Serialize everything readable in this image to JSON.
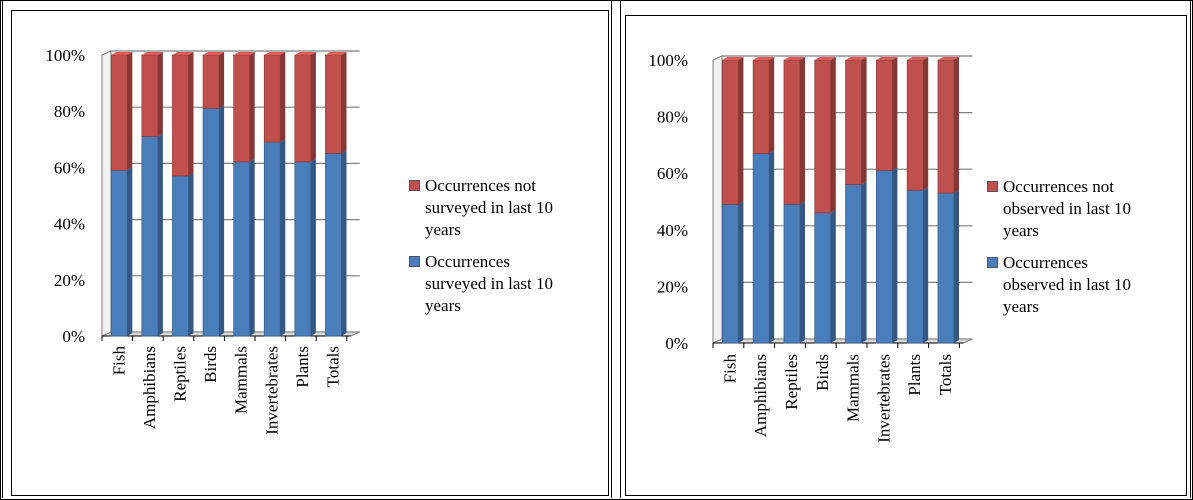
{
  "colors": {
    "surveyed_blue": "#4a7ebb",
    "not_surveyed_red": "#c0504d",
    "grid": "#7f7f7f",
    "floor": "#d9d9d9"
  },
  "chart_data": [
    {
      "type": "bar",
      "stacked": true,
      "percent": true,
      "categories": [
        "Fish",
        "Amphibians",
        "Reptiles",
        "Birds",
        "Mammals",
        "Invertebrates",
        "Plants",
        "Totals"
      ],
      "yticks": [
        "0%",
        "20%",
        "40%",
        "60%",
        "80%",
        "100%"
      ],
      "ylim": [
        0,
        100
      ],
      "grid": true,
      "legend_position": "right",
      "series": [
        {
          "name": "Occurrences surveyed in last 10 years",
          "color": "#4a7ebb",
          "values": [
            59,
            71,
            57,
            81,
            62,
            69,
            62,
            65
          ]
        },
        {
          "name": "Occurrences not surveyed in last 10 years",
          "color": "#c0504d",
          "values": [
            41,
            29,
            43,
            19,
            38,
            31,
            38,
            35
          ]
        }
      ],
      "legend": {
        "top_lines": [
          "Occurrences not",
          "surveyed in last 10",
          "years"
        ],
        "bottom_lines": [
          "Occurrences",
          "surveyed in last 10",
          "years"
        ]
      }
    },
    {
      "type": "bar",
      "stacked": true,
      "percent": true,
      "categories": [
        "Fish",
        "Amphibians",
        "Reptiles",
        "Birds",
        "Mammals",
        "Invertebrates",
        "Plants",
        "Totals"
      ],
      "yticks": [
        "0%",
        "20%",
        "40%",
        "60%",
        "80%",
        "100%"
      ],
      "ylim": [
        0,
        100
      ],
      "grid": true,
      "legend_position": "right",
      "series": [
        {
          "name": "Occurrences observed in last 10 years",
          "color": "#4a7ebb",
          "values": [
            49,
            67,
            49,
            46,
            56,
            61,
            54,
            53
          ]
        },
        {
          "name": "Occurrences not observed in last 10 years",
          "color": "#c0504d",
          "values": [
            51,
            33,
            51,
            54,
            44,
            39,
            46,
            47
          ]
        }
      ],
      "legend": {
        "top_lines": [
          "Occurrences not",
          "observed in last 10",
          "years"
        ],
        "bottom_lines": [
          "Occurrences",
          "observed in last 10",
          "years"
        ]
      }
    }
  ]
}
